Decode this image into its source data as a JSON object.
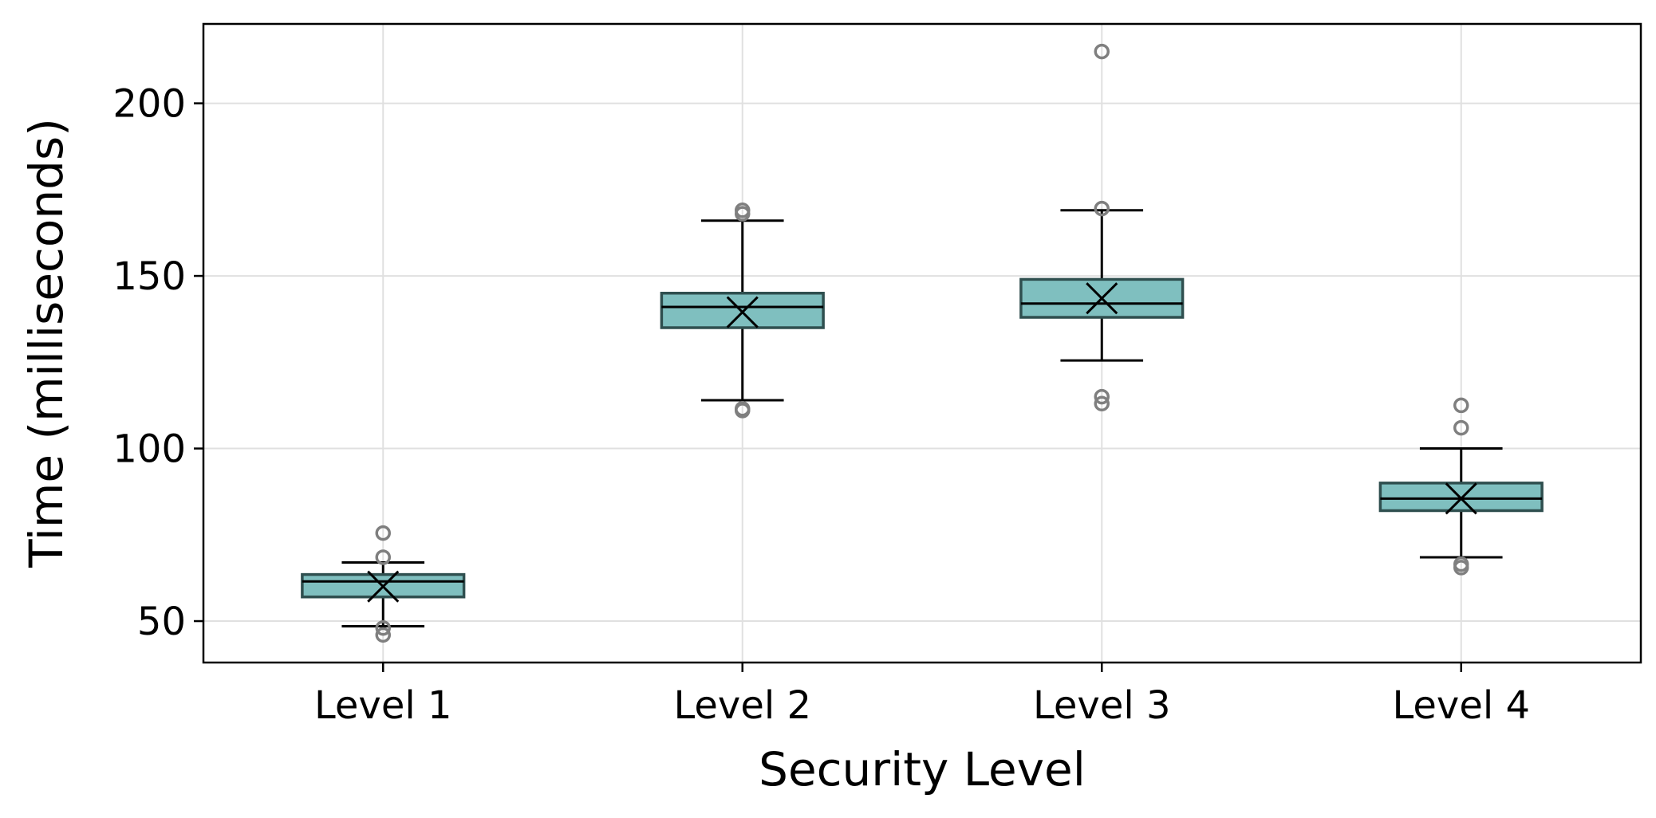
{
  "chart_data": {
    "type": "box",
    "title": "",
    "xlabel": "Security Level",
    "ylabel": "Time (milliseconds)",
    "categories": [
      "Level 1",
      "Level 2",
      "Level 3",
      "Level 4"
    ],
    "ylim": [
      38,
      223
    ],
    "yticks": [
      50,
      100,
      150,
      200
    ],
    "grid": true,
    "legend": "none",
    "boxes": [
      {
        "category": "Level 1",
        "whisker_low": 48.5,
        "q1": 57,
        "median": 61.5,
        "q3": 63.5,
        "whisker_high": 67,
        "mean": 60,
        "outliers": [
          75.5,
          68.5,
          48,
          46
        ]
      },
      {
        "category": "Level 2",
        "whisker_low": 114,
        "q1": 135,
        "median": 141,
        "q3": 145,
        "whisker_high": 166,
        "mean": 139.5,
        "outliers": [
          169,
          168,
          111.5,
          111
        ]
      },
      {
        "category": "Level 3",
        "whisker_low": 125.5,
        "q1": 138,
        "median": 142,
        "q3": 149,
        "whisker_high": 169,
        "mean": 143.5,
        "outliers": [
          215,
          169.5,
          115,
          113
        ]
      },
      {
        "category": "Level 4",
        "whisker_low": 68.5,
        "q1": 82,
        "median": 85.5,
        "q3": 90,
        "whisker_high": 100,
        "mean": 85.5,
        "outliers": [
          112.5,
          106,
          66.5,
          65.5
        ]
      }
    ],
    "colors": {
      "box_fill": "#7fbfbf",
      "box_edge": "#2f4f4f",
      "whisker": "#000000",
      "median": "#000000",
      "mean_marker": "#000000",
      "outlier": "#7f7f7f",
      "grid": "#e0e0e0"
    },
    "icons": {
      "mean_marker": "x-marker-icon",
      "outlier": "circle-outlier-icon"
    }
  }
}
